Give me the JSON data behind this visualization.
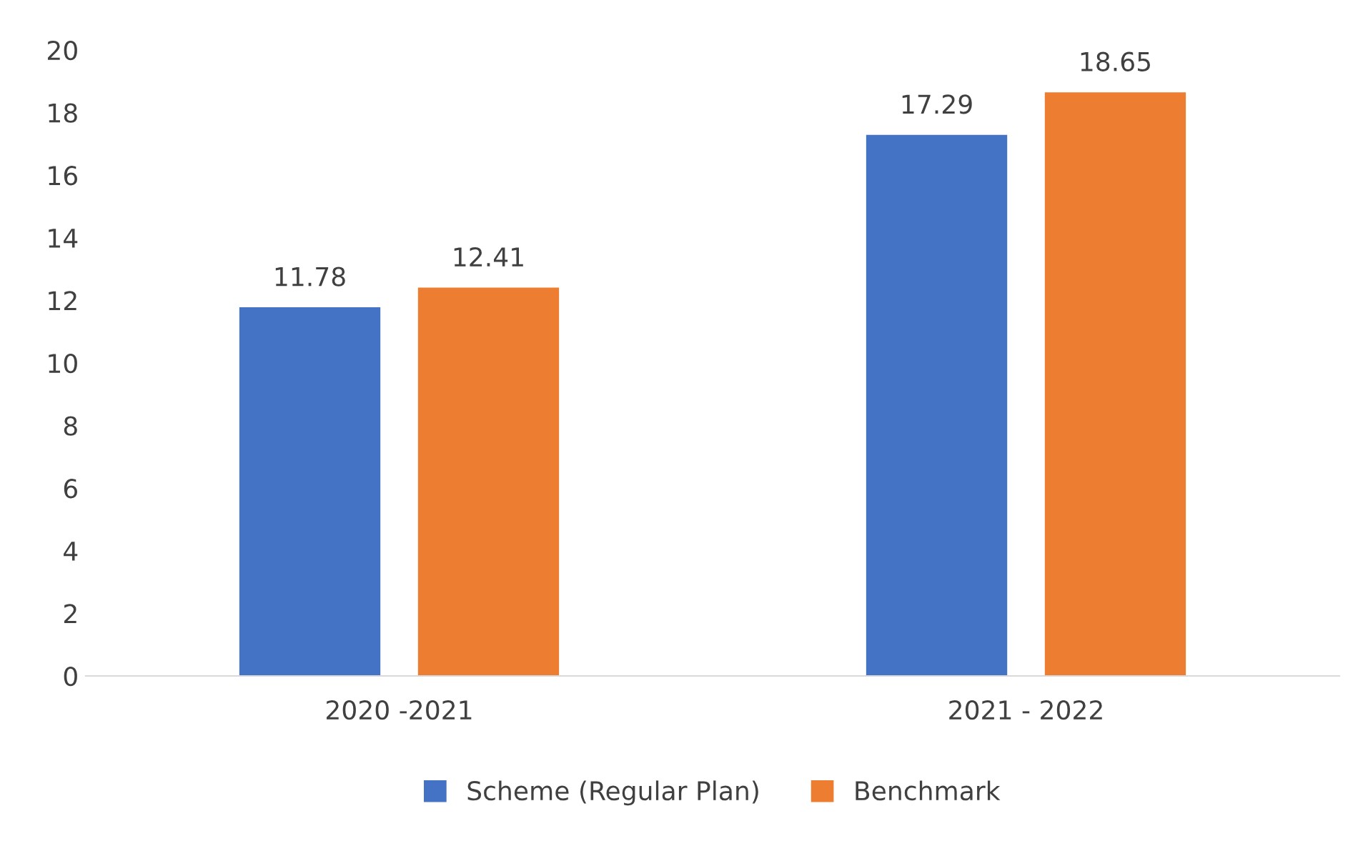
{
  "chart_data": {
    "type": "bar",
    "categories": [
      "2020 -2021",
      "2021 - 2022"
    ],
    "series": [
      {
        "name": "Scheme (Regular Plan)",
        "color": "#4472c4",
        "values": [
          11.78,
          17.29
        ]
      },
      {
        "name": "Benchmark",
        "color": "#ed7d31",
        "values": [
          12.41,
          18.65
        ]
      }
    ],
    "ylim": [
      0,
      20
    ],
    "yticks": [
      0,
      2,
      4,
      6,
      8,
      10,
      12,
      14,
      16,
      18,
      20
    ],
    "grid": false,
    "legend": "bottom",
    "data_labels": true
  }
}
